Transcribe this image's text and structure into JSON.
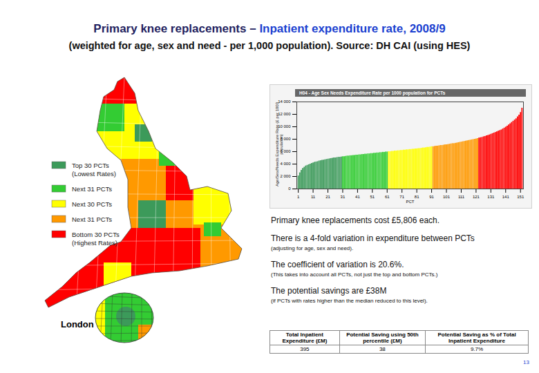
{
  "title": [
    "Primary knee replacements –",
    "Inpatient expenditure rate, 2008/9"
  ],
  "subtitle": "(weighted for age, sex and need - per 1,000 population). Source: DH CAI (using HES)",
  "map": {
    "legend": [
      {
        "label": [
          "Top 30 PCTs",
          "(Lowest Rates)"
        ],
        "color": "#3c9a5a"
      },
      {
        "label": [
          "Next 31 PCTs"
        ],
        "color": "#33cc33"
      },
      {
        "label": [
          "Next 30 PCTs"
        ],
        "color": "#ffff00"
      },
      {
        "label": [
          "Next 31 PCTs"
        ],
        "color": "#ff9900"
      },
      {
        "label": [
          "Bottom 30 PCTs",
          "(Highest Rates)"
        ],
        "color": "#ff0000"
      }
    ],
    "inset_label": "London"
  },
  "chart_data": {
    "type": "bar",
    "title": "H04 - Age Sex Needs Expenditure Rate per 1000 population for PCTs",
    "x_label": "PCT",
    "y_label": "Age/Sex/Needs Expenditure Rate (£ per 1000 population)",
    "x": [
      1,
      2,
      3,
      4,
      5,
      6,
      7,
      8,
      9,
      10,
      11,
      12,
      13,
      14,
      15,
      16,
      17,
      18,
      19,
      20,
      21,
      22,
      23,
      24,
      25,
      26,
      27,
      28,
      29,
      30,
      31,
      32,
      33,
      34,
      35,
      36,
      37,
      38,
      39,
      40,
      41,
      42,
      43,
      44,
      45,
      46,
      47,
      48,
      49,
      50,
      51,
      52,
      53,
      54,
      55,
      56,
      57,
      58,
      59,
      60,
      61,
      62,
      63,
      64,
      65,
      66,
      67,
      68,
      69,
      70,
      71,
      72,
      73,
      74,
      75,
      76,
      77,
      78,
      79,
      80,
      81,
      82,
      83,
      84,
      85,
      86,
      87,
      88,
      89,
      90,
      91,
      92,
      93,
      94,
      95,
      96,
      97,
      98,
      99,
      100,
      101,
      102,
      103,
      104,
      105,
      106,
      107,
      108,
      109,
      110,
      111,
      112,
      113,
      114,
      115,
      116,
      117,
      118,
      119,
      120,
      121,
      122,
      123,
      124,
      125,
      126,
      127,
      128,
      129,
      130,
      131,
      132,
      133,
      134,
      135,
      136,
      137,
      138,
      139,
      140,
      141,
      142,
      143,
      144,
      145,
      146,
      147,
      148,
      149,
      150,
      151,
      152
    ],
    "values": [
      2100,
      2600,
      3000,
      3300,
      3500,
      3700,
      3800,
      3900,
      4000,
      4100,
      4200,
      4300,
      4350,
      4400,
      4500,
      4550,
      4600,
      4650,
      4700,
      4750,
      4800,
      4850,
      4900,
      4950,
      5000,
      5000,
      5050,
      5100,
      5100,
      5150,
      5200,
      5200,
      5250,
      5300,
      5300,
      5350,
      5350,
      5400,
      5400,
      5450,
      5450,
      5500,
      5500,
      5550,
      5550,
      5600,
      5600,
      5650,
      5650,
      5700,
      5700,
      5750,
      5750,
      5800,
      5800,
      5850,
      5850,
      5900,
      5900,
      5950,
      5950,
      6000,
      6000,
      6050,
      6050,
      6100,
      6100,
      6150,
      6150,
      6200,
      6200,
      6250,
      6250,
      6300,
      6300,
      6350,
      6350,
      6400,
      6400,
      6450,
      6450,
      6500,
      6500,
      6550,
      6600,
      6600,
      6650,
      6700,
      6700,
      6750,
      6800,
      6800,
      6850,
      6900,
      6900,
      6950,
      7000,
      7000,
      7050,
      7100,
      7100,
      7150,
      7200,
      7250,
      7300,
      7300,
      7350,
      7400,
      7450,
      7500,
      7550,
      7600,
      7650,
      7700,
      7750,
      7800,
      7850,
      7900,
      7950,
      8000,
      8050,
      8100,
      8200,
      8250,
      8300,
      8400,
      8450,
      8550,
      8600,
      8700,
      8800,
      8900,
      9000,
      9100,
      9200,
      9300,
      9400,
      9500,
      9650,
      9800,
      9950,
      10100,
      10300,
      10500,
      10700,
      10900,
      11100,
      11300,
      11600,
      11900,
      12300,
      13000
    ],
    "colors": [
      "#3c9a5a",
      "#3c9a5a",
      "#3c9a5a",
      "#3c9a5a",
      "#3c9a5a",
      "#3c9a5a",
      "#3c9a5a",
      "#3c9a5a",
      "#3c9a5a",
      "#3c9a5a",
      "#3c9a5a",
      "#3c9a5a",
      "#3c9a5a",
      "#3c9a5a",
      "#3c9a5a",
      "#3c9a5a",
      "#3c9a5a",
      "#3c9a5a",
      "#3c9a5a",
      "#3c9a5a",
      "#3c9a5a",
      "#3c9a5a",
      "#3c9a5a",
      "#3c9a5a",
      "#3c9a5a",
      "#3c9a5a",
      "#3c9a5a",
      "#3c9a5a",
      "#3c9a5a",
      "#3c9a5a",
      "#33cc33",
      "#33cc33",
      "#33cc33",
      "#33cc33",
      "#33cc33",
      "#33cc33",
      "#33cc33",
      "#33cc33",
      "#33cc33",
      "#33cc33",
      "#33cc33",
      "#33cc33",
      "#33cc33",
      "#33cc33",
      "#33cc33",
      "#33cc33",
      "#33cc33",
      "#33cc33",
      "#33cc33",
      "#33cc33",
      "#33cc33",
      "#33cc33",
      "#33cc33",
      "#33cc33",
      "#33cc33",
      "#33cc33",
      "#33cc33",
      "#33cc33",
      "#33cc33",
      "#33cc33",
      "#33cc33",
      "#ffff00",
      "#ffff00",
      "#ffff00",
      "#ffff00",
      "#ffff00",
      "#ffff00",
      "#ffff00",
      "#ffff00",
      "#ffff00",
      "#ffff00",
      "#ffff00",
      "#ffff00",
      "#ffff00",
      "#ffff00",
      "#ffff00",
      "#ffff00",
      "#ffff00",
      "#ffff00",
      "#ffff00",
      "#ffff00",
      "#ffff00",
      "#ffff00",
      "#ffff00",
      "#ffff00",
      "#ffff00",
      "#ffff00",
      "#ffff00",
      "#ffff00",
      "#ffff00",
      "#ffff00",
      "#ff9900",
      "#ff9900",
      "#ff9900",
      "#ff9900",
      "#ff9900",
      "#ff9900",
      "#ff9900",
      "#ff9900",
      "#ff9900",
      "#ff9900",
      "#ff9900",
      "#ff9900",
      "#ff9900",
      "#ff9900",
      "#ff9900",
      "#ff9900",
      "#ff9900",
      "#ff9900",
      "#ff9900",
      "#ff9900",
      "#ff9900",
      "#ff9900",
      "#ff9900",
      "#ff9900",
      "#ff9900",
      "#ff9900",
      "#ff9900",
      "#ff9900",
      "#ff9900",
      "#ff9900",
      "#ff9900",
      "#ff0000",
      "#ff0000",
      "#ff0000",
      "#ff0000",
      "#ff0000",
      "#ff0000",
      "#ff0000",
      "#ff0000",
      "#ff0000",
      "#ff0000",
      "#ff0000",
      "#ff0000",
      "#ff0000",
      "#ff0000",
      "#ff0000",
      "#ff0000",
      "#ff0000",
      "#ff0000",
      "#ff0000",
      "#ff0000",
      "#ff0000",
      "#ff0000",
      "#ff0000",
      "#ff0000",
      "#ff0000",
      "#ff0000",
      "#ff0000",
      "#ff0000",
      "#ff0000",
      "#ff0000"
    ],
    "xlim": [
      0,
      153
    ],
    "xticks": [
      1,
      11,
      21,
      31,
      41,
      51,
      61,
      71,
      81,
      91,
      101,
      111,
      121,
      131,
      141,
      151
    ],
    "ylim": [
      0,
      14000
    ],
    "yticks": [
      0,
      {
        "value": 2000,
        "label": "2 000"
      },
      {
        "value": 4000,
        "label": "4 000"
      },
      {
        "value": 6000,
        "label": "6 000"
      },
      {
        "value": 8000,
        "label": "8 000"
      },
      {
        "value": 10000,
        "label": "10 000"
      },
      {
        "value": 12000,
        "label": "12 000"
      },
      {
        "value": 14000,
        "label": "14 000"
      }
    ],
    "grid": false
  },
  "notes": [
    {
      "heading": "Primary knee replacements cost £5,806 each."
    },
    {
      "heading": "There is a 4-fold variation in expenditure between PCTs",
      "detail": "(adjusting for age, sex and need)."
    },
    {
      "heading": "The coefficient of variation is 20.6%.",
      "detail": "(This takes into account all PCTs, not just the top and bottom PCTs.)"
    },
    {
      "heading": "The potential savings are £38M",
      "detail": "(if PCTs with rates higher than the median reduced to this level)."
    }
  ],
  "table": {
    "header": [
      "Total Inpatient Expenditure (£M)",
      "Potential Saving using 50th percentile (£M)",
      "Potential Saving as % of Total Inpatient Expenditure"
    ],
    "rows": [
      [
        "395",
        "38",
        "9.7%"
      ]
    ]
  },
  "page_number": "13"
}
